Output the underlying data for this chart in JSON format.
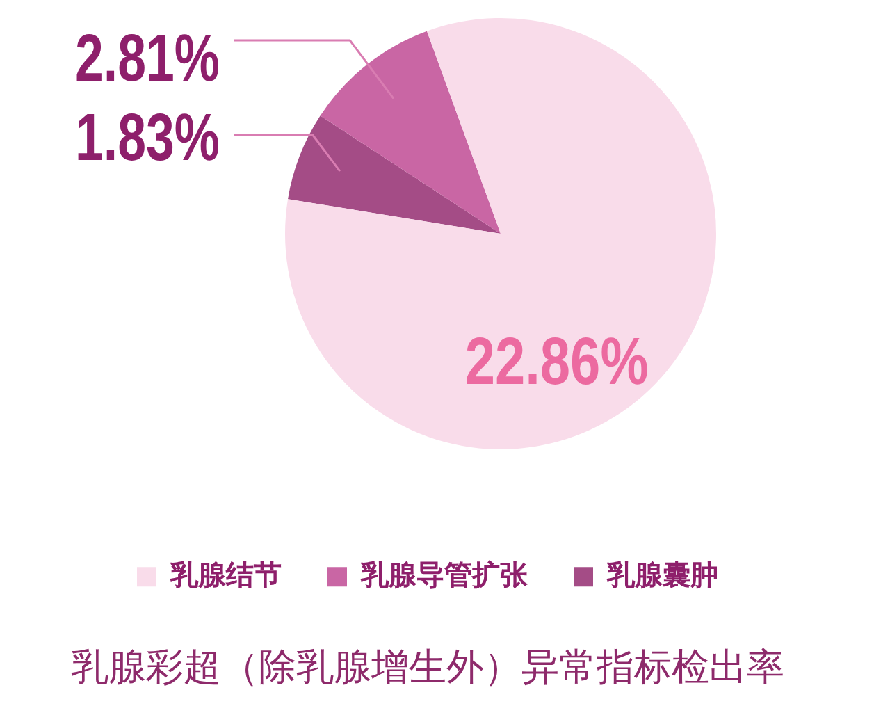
{
  "chart_data": {
    "type": "pie",
    "title": "乳腺彩超（除乳腺增生外）异常指标检出率",
    "categories": [
      "乳腺结节",
      "乳腺导管扩张",
      "乳腺囊肿"
    ],
    "values": [
      22.86,
      2.81,
      1.83
    ],
    "colors": [
      "#f9dcea",
      "#c966a4",
      "#a44c86"
    ],
    "value_labels": [
      "22.86%",
      "2.81%",
      "1.83%"
    ],
    "legend": "bottom"
  }
}
